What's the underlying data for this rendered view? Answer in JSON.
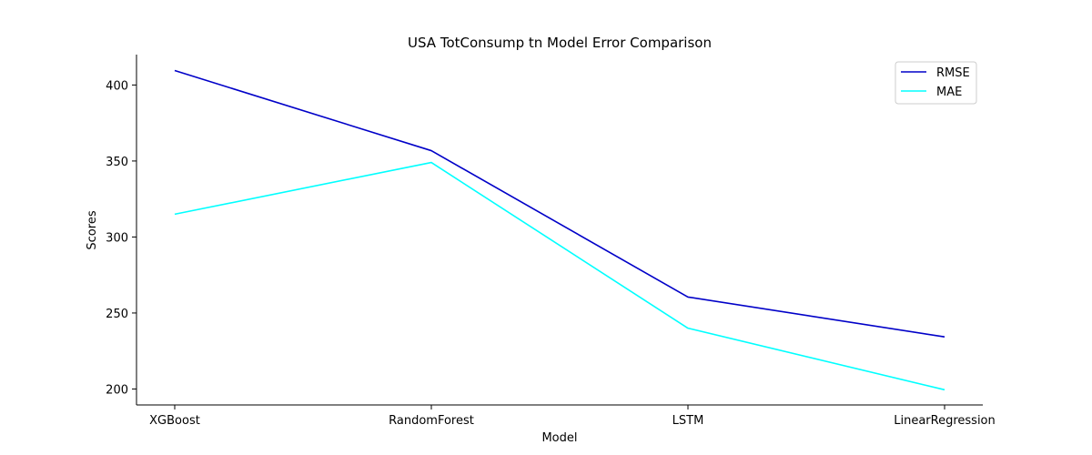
{
  "chart_data": {
    "type": "line",
    "title": "USA TotConsump tn Model Error Comparison",
    "xlabel": "Model",
    "ylabel": "Scores",
    "categories": [
      "XGBoost",
      "RandomForest",
      "LSTM",
      "LinearRegression"
    ],
    "series": [
      {
        "name": "RMSE",
        "color": "#0000c8",
        "values": [
          409.5,
          356.8,
          260.5,
          234.3
        ]
      },
      {
        "name": "MAE",
        "color": "#00ffff",
        "values": [
          315.0,
          349.0,
          240.0,
          199.5
        ]
      }
    ],
    "ylim": [
      189.5,
      420.0
    ],
    "yticks": [
      200,
      250,
      300,
      350,
      400
    ],
    "grid": false,
    "legend_position": "top-right"
  }
}
